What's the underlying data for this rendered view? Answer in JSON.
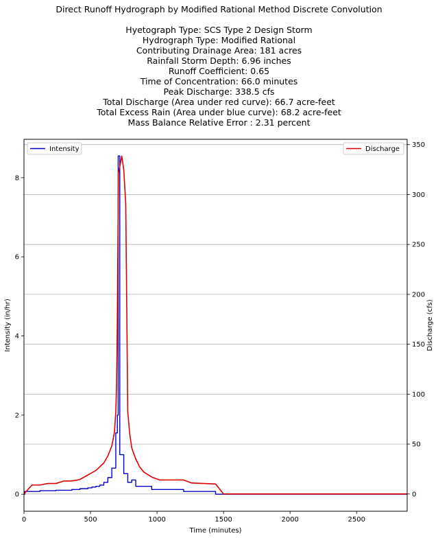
{
  "chart_data": {
    "type": "line",
    "title": "Direct Runoff Hydrograph by Modified Rational Method Discrete Convolution",
    "subtitle_lines": [
      "Hyetograph Type: SCS Type 2 Design Storm",
      "Hydrograph Type: Modified Rational",
      "Contributing Drainage Area: 181 acres",
      "Rainfall Storm Depth: 6.96 inches",
      "Runoff Coefficient: 0.65",
      "Time of Concentration: 66.0 minutes",
      "Peak Discharge: 338.5 cfs",
      "Total Discharge (Area under red curve): 66.7 acre-feet",
      "Total Excess Rain (Area under blue curve): 68.2 acre-feet",
      "Mass Balance Relative Error : 2.31 percent"
    ],
    "xlabel": "Time (minutes)",
    "ylabel_left": "Intensity (in/hr)",
    "ylabel_right": "Discharge (cfs)",
    "xlim": [
      0,
      2880
    ],
    "ylim_left": [
      -0.43,
      8.97
    ],
    "ylim_right": [
      -17.3,
      355.3
    ],
    "x_ticks": [
      0,
      500,
      1000,
      1500,
      2000,
      2500
    ],
    "x_tick_labels": [
      "0",
      "500",
      "1000",
      "1500",
      "2000",
      "2500"
    ],
    "y_left_ticks": [
      0,
      2,
      4,
      6,
      8
    ],
    "y_left_tick_labels": [
      "0",
      "2",
      "4",
      "6",
      "8"
    ],
    "y_right_ticks": [
      0,
      50,
      100,
      150,
      200,
      250,
      300,
      350
    ],
    "y_right_tick_labels": [
      "0",
      "50",
      "100",
      "150",
      "200",
      "250",
      "300",
      "350"
    ],
    "grid": "right-axis horizontal",
    "series": [
      {
        "name": "Intensity",
        "axis": "left",
        "color": "#0000cc",
        "step": true,
        "x": [
          0,
          6,
          120,
          240,
          360,
          420,
          480,
          510,
          540,
          570,
          600,
          630,
          660,
          690,
          702,
          708,
          720,
          750,
          780,
          810,
          840,
          960,
          1200,
          1440,
          1500,
          2880
        ],
        "y": [
          0,
          0.07,
          0.09,
          0.1,
          0.12,
          0.14,
          0.16,
          0.18,
          0.2,
          0.23,
          0.3,
          0.42,
          0.66,
          1.55,
          2.0,
          8.55,
          1.0,
          0.52,
          0.3,
          0.36,
          0.2,
          0.12,
          0.07,
          0.0,
          0.0,
          0.0
        ]
      },
      {
        "name": "Discharge",
        "axis": "right",
        "color": "#dd0000",
        "step": false,
        "x": [
          0,
          60,
          120,
          180,
          240,
          300,
          360,
          420,
          480,
          540,
          600,
          630,
          660,
          680,
          690,
          696,
          702,
          710,
          720,
          735,
          750,
          765,
          780,
          795,
          810,
          840,
          870,
          900,
          960,
          1020,
          1200,
          1260,
          1440,
          1500,
          2880
        ],
        "y": [
          0,
          9,
          9,
          10.5,
          10.5,
          13,
          13,
          14.5,
          19,
          23.5,
          31,
          38,
          48,
          62,
          82,
          110,
          180,
          322,
          328,
          338.5,
          325,
          290,
          82,
          60,
          46,
          35,
          27,
          22,
          17,
          14,
          14,
          11,
          10,
          0,
          0
        ]
      }
    ],
    "legend": [
      {
        "label": "Intensity",
        "position": "top-left",
        "color": "#0000cc"
      },
      {
        "label": "Discharge",
        "position": "top-right",
        "color": "#dd0000"
      }
    ]
  }
}
